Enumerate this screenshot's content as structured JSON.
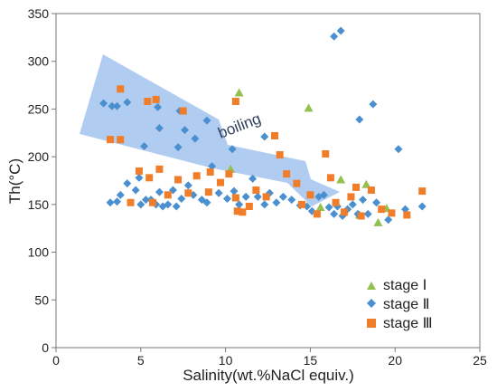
{
  "chart_data": {
    "type": "scatter",
    "xlabel": "Salinity(wt.%NaCl equiv.)",
    "ylabel": "Th(°C)",
    "xlim": [
      0,
      25
    ],
    "ylim": [
      0,
      350
    ],
    "xticks": [
      0,
      5,
      10,
      15,
      20,
      25
    ],
    "yticks": [
      0,
      50,
      100,
      150,
      200,
      250,
      300,
      350
    ],
    "grid": false,
    "legend_position": "bottom-right",
    "annotation": "boiling",
    "colors": {
      "stage1": "#93c04e",
      "stage2": "#4a90d0",
      "stage3": "#f07d29",
      "arrow": "#a9c6f0"
    },
    "series": [
      {
        "name": "stage Ⅰ",
        "marker": "triangle",
        "color": "#93c04e",
        "points": [
          [
            10.8,
            267
          ],
          [
            10.3,
            187
          ],
          [
            14.9,
            251
          ],
          [
            15.6,
            147
          ],
          [
            16.8,
            176
          ],
          [
            17.9,
            139
          ],
          [
            18.3,
            171
          ],
          [
            19.0,
            131
          ],
          [
            19.5,
            146
          ]
        ]
      },
      {
        "name": "stage Ⅱ",
        "marker": "diamond",
        "color": "#4a90d0",
        "points": [
          [
            2.8,
            256
          ],
          [
            3.3,
            253
          ],
          [
            3.6,
            253
          ],
          [
            4.2,
            257
          ],
          [
            6.1,
            230
          ],
          [
            6.0,
            252
          ],
          [
            7.2,
            210
          ],
          [
            7.6,
            228
          ],
          [
            8.2,
            219
          ],
          [
            8.9,
            238
          ],
          [
            7.3,
            248
          ],
          [
            10.4,
            208
          ],
          [
            12.3,
            221
          ],
          [
            3.2,
            152
          ],
          [
            3.6,
            153
          ],
          [
            3.8,
            160
          ],
          [
            4.2,
            172
          ],
          [
            4.7,
            165
          ],
          [
            4.9,
            178
          ],
          [
            5.0,
            150
          ],
          [
            5.3,
            155
          ],
          [
            5.6,
            155
          ],
          [
            5.9,
            150
          ],
          [
            6.1,
            163
          ],
          [
            6.3,
            148
          ],
          [
            6.6,
            150
          ],
          [
            6.9,
            165
          ],
          [
            7.1,
            148
          ],
          [
            7.4,
            156
          ],
          [
            7.8,
            170
          ],
          [
            8.1,
            160
          ],
          [
            8.6,
            155
          ],
          [
            8.9,
            152
          ],
          [
            9.2,
            190
          ],
          [
            9.6,
            162
          ],
          [
            10.1,
            156
          ],
          [
            10.5,
            164
          ],
          [
            10.8,
            150
          ],
          [
            11.2,
            158
          ],
          [
            11.6,
            177
          ],
          [
            11.9,
            158
          ],
          [
            12.3,
            150
          ],
          [
            12.6,
            162
          ],
          [
            13.0,
            152
          ],
          [
            13.4,
            158
          ],
          [
            13.9,
            155
          ],
          [
            14.4,
            149
          ],
          [
            14.8,
            148
          ],
          [
            15.1,
            143
          ],
          [
            15.5,
            158
          ],
          [
            15.8,
            160
          ],
          [
            16.1,
            147
          ],
          [
            16.4,
            140
          ],
          [
            16.6,
            148
          ],
          [
            16.9,
            138
          ],
          [
            17.2,
            145
          ],
          [
            17.5,
            150
          ],
          [
            17.8,
            140
          ],
          [
            18.1,
            155
          ],
          [
            18.4,
            140
          ],
          [
            18.9,
            152
          ],
          [
            19.6,
            134
          ],
          [
            20.6,
            145
          ],
          [
            21.6,
            148
          ],
          [
            16.4,
            326
          ],
          [
            16.8,
            332
          ],
          [
            17.9,
            239
          ],
          [
            18.7,
            255
          ],
          [
            20.2,
            208
          ],
          [
            5.2,
            211
          ]
        ]
      },
      {
        "name": "stage Ⅲ",
        "marker": "square",
        "color": "#f07d29",
        "points": [
          [
            3.8,
            271
          ],
          [
            5.4,
            258
          ],
          [
            5.9,
            260
          ],
          [
            7.5,
            248
          ],
          [
            3.2,
            218
          ],
          [
            3.8,
            218
          ],
          [
            4.4,
            152
          ],
          [
            4.9,
            185
          ],
          [
            5.5,
            178
          ],
          [
            5.7,
            152
          ],
          [
            6.1,
            187
          ],
          [
            6.6,
            160
          ],
          [
            7.2,
            176
          ],
          [
            7.8,
            162
          ],
          [
            8.3,
            180
          ],
          [
            9.0,
            163
          ],
          [
            9.7,
            173
          ],
          [
            10.2,
            182
          ],
          [
            10.6,
            157
          ],
          [
            11.0,
            142
          ],
          [
            11.4,
            148
          ],
          [
            11.8,
            165
          ],
          [
            12.4,
            158
          ],
          [
            12.9,
            222
          ],
          [
            13.2,
            202
          ],
          [
            13.6,
            182
          ],
          [
            14.2,
            172
          ],
          [
            14.5,
            150
          ],
          [
            15.0,
            160
          ],
          [
            15.4,
            140
          ],
          [
            15.9,
            203
          ],
          [
            16.2,
            178
          ],
          [
            16.5,
            152
          ],
          [
            17.0,
            142
          ],
          [
            17.4,
            158
          ],
          [
            17.7,
            168
          ],
          [
            18.0,
            138
          ],
          [
            18.6,
            165
          ],
          [
            19.2,
            145
          ],
          [
            19.8,
            141
          ],
          [
            20.7,
            139
          ],
          [
            21.6,
            164
          ],
          [
            10.6,
            258
          ],
          [
            10.7,
            143
          ],
          [
            9.1,
            184
          ]
        ]
      }
    ]
  }
}
